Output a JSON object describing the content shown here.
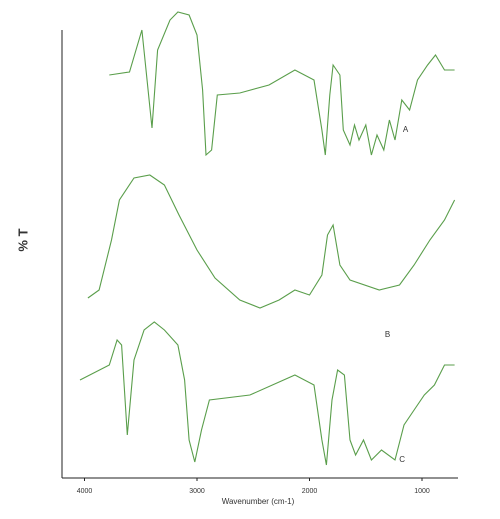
{
  "chart_data": {
    "type": "line",
    "xlabel": "Wavenumber (cm-1)",
    "ylabel": "% T",
    "xlim": [
      4200,
      680
    ],
    "xticks": [
      4000,
      3000,
      2000,
      1000
    ],
    "ylim": [
      0,
      448
    ],
    "series": [
      {
        "name": "A",
        "color": "#5a9e4b",
        "x": [
          3780,
          3600,
          3490,
          3400,
          3350,
          3240,
          3170,
          3070,
          3000,
          2950,
          2920,
          2870,
          2820,
          2620,
          2360,
          2130,
          1960,
          1890,
          1860,
          1820,
          1790,
          1730,
          1700,
          1640,
          1600,
          1560,
          1500,
          1450,
          1400,
          1340,
          1290,
          1240,
          1180,
          1110,
          1040,
          950,
          880,
          800,
          710
        ],
        "values": [
          403,
          406,
          448,
          350,
          428,
          458,
          466,
          463,
          443,
          388,
          323,
          328,
          383,
          385,
          393,
          408,
          398,
          348,
          323,
          383,
          413,
          403,
          348,
          333,
          353,
          338,
          353,
          323,
          343,
          328,
          358,
          338,
          378,
          368,
          398,
          413,
          423,
          408,
          408
        ]
      },
      {
        "name": "B",
        "color": "#5a9e4b",
        "x": [
          3970,
          3870,
          3760,
          3690,
          3560,
          3420,
          3290,
          3160,
          3000,
          2840,
          2620,
          2440,
          2270,
          2130,
          2000,
          1890,
          1840,
          1790,
          1730,
          1640,
          1380,
          1200,
          1070,
          930,
          800,
          710
        ],
        "values": [
          180,
          188,
          238,
          278,
          300,
          303,
          293,
          263,
          228,
          200,
          178,
          170,
          178,
          188,
          183,
          203,
          243,
          253,
          213,
          198,
          188,
          193,
          213,
          238,
          258,
          278
        ]
      },
      {
        "name": "C",
        "color": "#5a9e4b",
        "x": [
          4040,
          3780,
          3710,
          3670,
          3620,
          3560,
          3470,
          3380,
          3290,
          3170,
          3110,
          3070,
          3020,
          2960,
          2890,
          2530,
          2130,
          1960,
          1890,
          1850,
          1800,
          1750,
          1690,
          1640,
          1590,
          1520,
          1450,
          1360,
          1240,
          1160,
          1070,
          980,
          890,
          800,
          710
        ],
        "values": [
          98,
          113,
          138,
          133,
          43,
          118,
          148,
          156,
          148,
          133,
          98,
          38,
          16,
          48,
          78,
          83,
          103,
          93,
          38,
          13,
          78,
          108,
          103,
          38,
          23,
          38,
          18,
          28,
          18,
          53,
          68,
          83,
          93,
          113,
          113
        ]
      }
    ]
  }
}
